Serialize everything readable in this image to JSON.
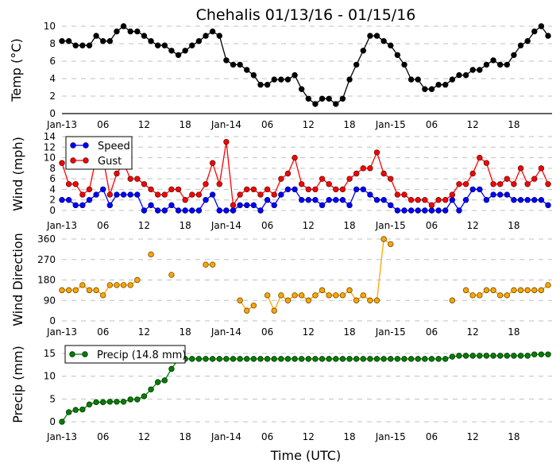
{
  "title": "Chehalis 01/13/16 - 01/15/16",
  "xlabel": "Time (UTC)",
  "xtick_labels": [
    "Jan-13",
    "06",
    "12",
    "18",
    "Jan-14",
    "06",
    "12",
    "18",
    "Jan-15",
    "06",
    "12",
    "18"
  ],
  "xtick_values": [
    "2016-01-13 00:00",
    "2016-01-13 06:00",
    "2016-01-13 12:00",
    "2016-01-13 18:00",
    "2016-01-14 00:00",
    "2016-01-14 06:00",
    "2016-01-14 12:00",
    "2016-01-14 18:00",
    "2016-01-15 00:00",
    "2016-01-15 06:00",
    "2016-01-15 12:00",
    "2016-01-15 18:00"
  ],
  "x": [
    "2016-01-13 00:00",
    "2016-01-13 01:00",
    "2016-01-13 02:00",
    "2016-01-13 03:00",
    "2016-01-13 04:00",
    "2016-01-13 05:00",
    "2016-01-13 06:00",
    "2016-01-13 07:00",
    "2016-01-13 08:00",
    "2016-01-13 09:00",
    "2016-01-13 10:00",
    "2016-01-13 11:00",
    "2016-01-13 12:00",
    "2016-01-13 13:00",
    "2016-01-13 14:00",
    "2016-01-13 15:00",
    "2016-01-13 16:00",
    "2016-01-13 17:00",
    "2016-01-13 18:00",
    "2016-01-13 19:00",
    "2016-01-13 20:00",
    "2016-01-13 21:00",
    "2016-01-13 22:00",
    "2016-01-13 23:00",
    "2016-01-14 00:00",
    "2016-01-14 01:00",
    "2016-01-14 02:00",
    "2016-01-14 03:00",
    "2016-01-14 04:00",
    "2016-01-14 05:00",
    "2016-01-14 06:00",
    "2016-01-14 07:00",
    "2016-01-14 08:00",
    "2016-01-14 09:00",
    "2016-01-14 10:00",
    "2016-01-14 11:00",
    "2016-01-14 12:00",
    "2016-01-14 13:00",
    "2016-01-14 14:00",
    "2016-01-14 15:00",
    "2016-01-14 16:00",
    "2016-01-14 17:00",
    "2016-01-14 18:00",
    "2016-01-14 19:00",
    "2016-01-14 20:00",
    "2016-01-14 21:00",
    "2016-01-14 22:00",
    "2016-01-14 23:00",
    "2016-01-15 00:00",
    "2016-01-15 01:00",
    "2016-01-15 02:00",
    "2016-01-15 03:00",
    "2016-01-15 04:00",
    "2016-01-15 05:00",
    "2016-01-15 06:00",
    "2016-01-15 07:00",
    "2016-01-15 08:00",
    "2016-01-15 09:00",
    "2016-01-15 10:00",
    "2016-01-15 11:00",
    "2016-01-15 12:00",
    "2016-01-15 13:00",
    "2016-01-15 14:00",
    "2016-01-15 15:00",
    "2016-01-15 16:00",
    "2016-01-15 17:00",
    "2016-01-15 18:00",
    "2016-01-15 19:00",
    "2016-01-15 20:00",
    "2016-01-15 21:00",
    "2016-01-15 22:00",
    "2016-01-15 23:00"
  ],
  "chart_data": [
    {
      "type": "line",
      "ylabel": "Temp (°C)",
      "ylim": [
        0,
        10
      ],
      "yticks": [
        0,
        2,
        4,
        6,
        8,
        10
      ],
      "grid": true,
      "series": [
        {
          "color": "#000000",
          "values": [
            8.3,
            8.3,
            7.8,
            7.8,
            7.8,
            8.9,
            8.3,
            8.3,
            9.4,
            10,
            9.4,
            9.4,
            8.9,
            8.3,
            7.8,
            7.8,
            7.2,
            6.7,
            7.2,
            7.8,
            8.3,
            8.9,
            9.4,
            8.9,
            6.1,
            5.6,
            5.6,
            5.0,
            4.4,
            3.3,
            3.3,
            3.9,
            3.9,
            3.9,
            4.4,
            2.8,
            1.7,
            1.1,
            1.7,
            1.7,
            1.1,
            1.7,
            3.9,
            5.6,
            7.2,
            8.9,
            8.9,
            8.3,
            7.8,
            6.7,
            5.6,
            3.9,
            3.9,
            2.8,
            2.8,
            3.3,
            3.3,
            3.9,
            4.4,
            4.4,
            5.0,
            5.0,
            5.6,
            6.1,
            5.6,
            5.6,
            6.7,
            7.8,
            8.3,
            9.4,
            10,
            8.9
          ]
        }
      ]
    },
    {
      "type": "line",
      "ylabel": "Wind (mph)",
      "ylim": [
        0,
        14
      ],
      "yticks": [
        0,
        2,
        4,
        6,
        8,
        10,
        12,
        14
      ],
      "grid": true,
      "legend": "top-left",
      "series": [
        {
          "name": "Speed",
          "color": "#0000ff",
          "values": [
            2,
            2,
            1,
            1,
            2,
            3,
            4,
            1,
            3,
            3,
            3,
            3,
            0,
            1,
            0,
            0,
            1,
            0,
            0,
            0,
            0,
            2,
            3,
            0,
            0,
            0,
            1,
            1,
            1,
            0,
            2,
            1,
            3,
            4,
            4,
            2,
            2,
            2,
            1,
            2,
            2,
            2,
            1,
            4,
            4,
            3,
            2,
            2,
            1,
            0,
            0,
            0,
            0,
            0,
            0,
            0,
            0,
            2,
            0,
            2,
            4,
            4,
            2,
            3,
            3,
            3,
            2,
            2,
            2,
            2,
            2,
            1
          ]
        },
        {
          "name": "Gust",
          "color": "#ff0000",
          "values": [
            9,
            5,
            5,
            3,
            4,
            10,
            10,
            3,
            7,
            9,
            6,
            6,
            5,
            4,
            3,
            3,
            4,
            4,
            2,
            3,
            3,
            5,
            9,
            5,
            13,
            1,
            3,
            4,
            4,
            3,
            4,
            3,
            6,
            7,
            10,
            5,
            4,
            4,
            6,
            5,
            4,
            4,
            6,
            7,
            8,
            8,
            11,
            7,
            6,
            3,
            3,
            2,
            2,
            2,
            1,
            2,
            2,
            3,
            5,
            5,
            7,
            10,
            9,
            5,
            5,
            6,
            5,
            8,
            5,
            6,
            8,
            5
          ]
        }
      ]
    },
    {
      "type": "line",
      "ylabel": "Wind Direction",
      "ylim": [
        0,
        360
      ],
      "yticks": [
        0,
        90,
        180,
        270,
        360
      ],
      "grid": true,
      "series": [
        {
          "color": "#ffa500",
          "values": [
            135,
            135,
            135,
            157.5,
            135,
            135,
            112.5,
            157.5,
            157.5,
            157.5,
            157.5,
            180,
            null,
            292.5,
            null,
            null,
            202.5,
            null,
            null,
            null,
            null,
            247.5,
            247.5,
            null,
            null,
            null,
            90,
            45,
            67.5,
            null,
            112.5,
            45,
            112.5,
            90,
            112.5,
            112.5,
            90,
            112.5,
            135,
            112.5,
            112.5,
            112.5,
            135,
            90,
            112.5,
            90,
            90,
            360,
            337.5,
            null,
            null,
            null,
            null,
            null,
            null,
            null,
            null,
            90,
            null,
            135,
            112.5,
            112.5,
            135,
            135,
            112.5,
            112.5,
            135,
            135,
            135,
            135,
            135,
            157.5
          ]
        }
      ]
    },
    {
      "type": "line",
      "ylabel": "Precip (mm)",
      "ylim": [
        0,
        15
      ],
      "yticks": [
        0,
        5,
        10,
        15
      ],
      "grid": true,
      "legend": "top-left",
      "series": [
        {
          "name": "Precip (14.8 mm)",
          "color": "#007f00",
          "values": [
            0,
            2.1,
            2.6,
            2.7,
            3.8,
            4.3,
            4.3,
            4.4,
            4.4,
            4.4,
            4.9,
            4.9,
            5.6,
            7.1,
            8.7,
            9.1,
            11.6,
            13.8,
            13.8,
            13.8,
            13.8,
            13.8,
            13.8,
            13.8,
            13.8,
            13.8,
            13.8,
            13.8,
            13.8,
            13.8,
            13.8,
            13.8,
            13.8,
            13.8,
            13.8,
            13.8,
            13.8,
            13.8,
            13.8,
            13.8,
            13.8,
            13.8,
            13.8,
            13.8,
            13.8,
            13.8,
            13.8,
            13.8,
            13.8,
            13.8,
            13.8,
            13.8,
            13.8,
            13.8,
            13.8,
            13.8,
            13.8,
            14.3,
            14.5,
            14.5,
            14.5,
            14.5,
            14.5,
            14.5,
            14.5,
            14.5,
            14.5,
            14.5,
            14.5,
            14.8,
            14.8,
            14.8
          ]
        }
      ]
    }
  ]
}
